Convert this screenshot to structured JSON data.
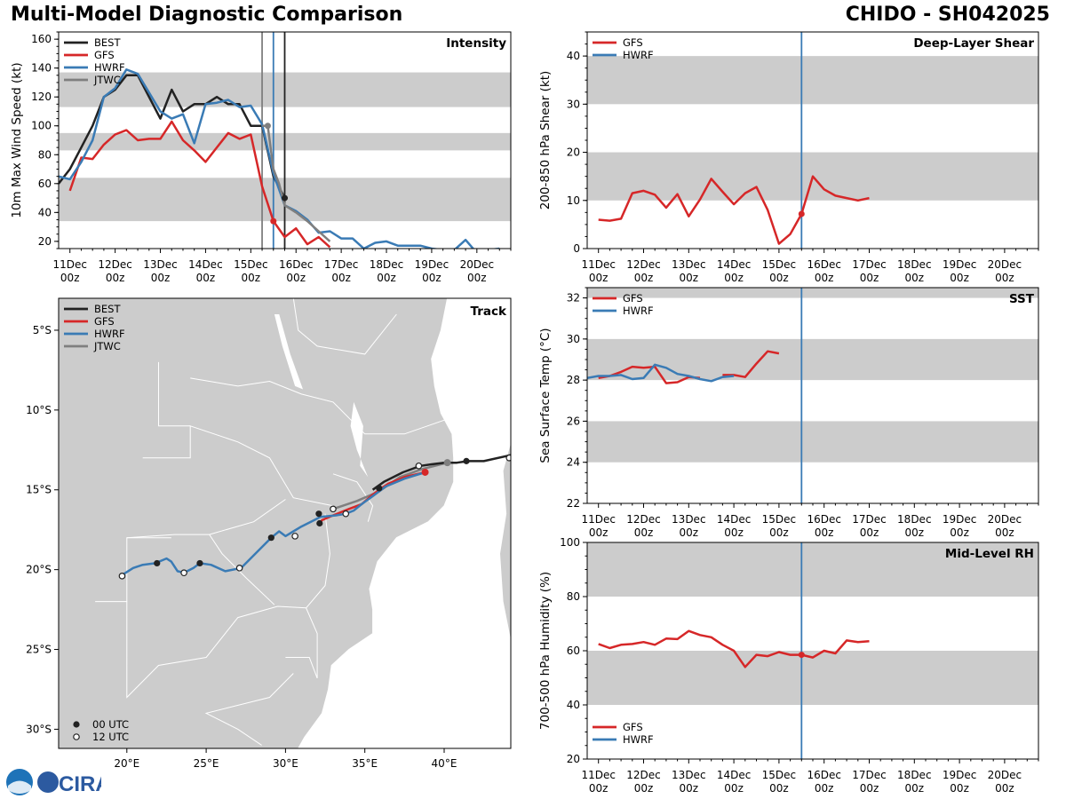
{
  "header": {
    "title": "Multi-Model Diagnostic Comparison",
    "storm": "CHIDO - SH042025"
  },
  "colors": {
    "BEST": "#222222",
    "GFS": "#d62728",
    "HWRF": "#3a7bb5",
    "JTWC": "#7f7f7f",
    "band": "#cccccc"
  },
  "logo": {
    "text": "CIRA"
  },
  "time_ticks": [
    "11Dec\n00z",
    "12Dec\n00z",
    "13Dec\n00z",
    "14Dec\n00z",
    "15Dec\n00z",
    "16Dec\n00z",
    "17Dec\n00z",
    "18Dec\n00z",
    "19Dec\n00z",
    "20Dec\n00z"
  ],
  "chart_data": [
    {
      "id": "intensity",
      "type": "line",
      "title": "Intensity",
      "ylabel": "10m Max Wind Speed (kt)",
      "xlim": [
        -0.25,
        9.75
      ],
      "ylim": [
        15,
        165
      ],
      "yticks": [
        20,
        40,
        60,
        80,
        100,
        120,
        140,
        160
      ],
      "bands": [
        [
          34,
          64
        ],
        [
          83,
          95
        ],
        [
          113,
          137
        ]
      ],
      "vlines": [
        {
          "x": 4.25,
          "color": "#7f7f7f"
        },
        {
          "x": 4.5,
          "color": "#3a7bb5"
        },
        {
          "x": 4.75,
          "color": "#222222"
        }
      ],
      "legend": [
        "BEST",
        "GFS",
        "HWRF",
        "JTWC"
      ],
      "legend_position": "top-left",
      "series": [
        {
          "name": "BEST",
          "x": [
            -0.25,
            0,
            0.25,
            0.5,
            0.75,
            1,
            1.25,
            1.5,
            1.75,
            2,
            2.25,
            2.5,
            2.75,
            3,
            3.25,
            3.5,
            3.75,
            4,
            4.25,
            4.5,
            4.75
          ],
          "y": [
            60,
            70,
            85,
            100,
            120,
            125,
            135,
            135,
            120,
            105,
            125,
            110,
            115,
            115,
            120,
            115,
            115,
            100,
            100,
            65,
            50
          ]
        },
        {
          "name": "GFS",
          "x": [
            0,
            0.25,
            0.5,
            0.75,
            1,
            1.25,
            1.5,
            1.75,
            2,
            2.25,
            2.5,
            2.75,
            3,
            3.25,
            3.5,
            3.75,
            4,
            4.25,
            4.5,
            4.75,
            5,
            5.25,
            5.5,
            5.75
          ],
          "y": [
            55,
            78,
            77,
            87,
            94,
            97,
            90,
            91,
            91,
            103,
            90,
            83,
            75,
            85,
            95,
            91,
            94,
            58,
            34,
            23,
            29,
            18,
            23,
            16
          ]
        },
        {
          "name": "HWRF",
          "x": [
            -0.25,
            0,
            0.25,
            0.5,
            0.75,
            1,
            1.25,
            1.5,
            1.75,
            2,
            2.25,
            2.5,
            2.75,
            3,
            3.25,
            3.5,
            3.75,
            4,
            4.25,
            4.5,
            4.75,
            5,
            5.25,
            5.5,
            5.75,
            6,
            6.25,
            6.5,
            6.75,
            7,
            7.25,
            7.5,
            7.75,
            8,
            8.25,
            8.5,
            8.75,
            9,
            9.25,
            9.5
          ],
          "y": [
            65,
            63,
            75,
            90,
            120,
            126,
            139,
            136,
            123,
            110,
            105,
            108,
            88,
            115,
            116,
            118,
            113,
            114,
            101,
            67,
            45,
            41,
            35,
            26,
            27,
            22,
            22,
            15,
            19,
            20,
            17,
            17,
            17,
            15,
            14,
            14,
            21,
            12,
            14,
            15
          ]
        },
        {
          "name": "JTWC",
          "x": [
            4.25,
            4.375,
            4.5,
            4.625,
            4.75,
            5,
            5.25,
            5.5,
            5.75
          ],
          "y": [
            100,
            100,
            70,
            60,
            45,
            40,
            34,
            27,
            20
          ]
        }
      ],
      "markers": [
        {
          "series": "GFS",
          "x": 4.5,
          "y": 34
        },
        {
          "series": "JTWC",
          "x": 4.375,
          "y": 100
        },
        {
          "series": "BEST",
          "x": 4.75,
          "y": 50
        }
      ]
    },
    {
      "id": "shear",
      "type": "line",
      "title": "Deep-Layer Shear",
      "ylabel": "200-850 hPa Shear (kt)",
      "xlim": [
        -0.25,
        9.75
      ],
      "ylim": [
        0,
        45
      ],
      "yticks": [
        0,
        10,
        20,
        30,
        40
      ],
      "bands": [
        [
          10,
          20
        ],
        [
          30,
          40
        ]
      ],
      "vlines": [
        {
          "x": 4.5,
          "color": "#3a7bb5"
        }
      ],
      "legend": [
        "GFS",
        "HWRF"
      ],
      "legend_position": "top-left",
      "series": [
        {
          "name": "GFS",
          "x": [
            0,
            0.25,
            0.5,
            0.75,
            1,
            1.25,
            1.5,
            1.75,
            2,
            2.25,
            2.5,
            2.75,
            3,
            3.25,
            3.5,
            3.75,
            4,
            4.25,
            4.5,
            4.75,
            5,
            5.25,
            5.5,
            5.75,
            6
          ],
          "y": [
            6,
            5.8,
            6.2,
            11.5,
            12,
            11.2,
            8.5,
            11.3,
            6.7,
            10.2,
            14.5,
            11.8,
            9.2,
            11.5,
            12.8,
            8,
            1,
            3,
            7.2,
            15,
            12.3,
            11,
            10.5,
            10,
            10.5
          ]
        }
      ],
      "markers": [
        {
          "series": "GFS",
          "x": 4.5,
          "y": 7.2
        }
      ]
    },
    {
      "id": "sst",
      "type": "line",
      "title": "SST",
      "ylabel": "Sea Surface Temp (°C)",
      "xlim": [
        -0.25,
        9.75
      ],
      "ylim": [
        22,
        32.5
      ],
      "yticks": [
        22,
        24,
        26,
        28,
        30,
        32
      ],
      "bands": [
        [
          24,
          26
        ],
        [
          28,
          30
        ],
        [
          32,
          33
        ]
      ],
      "vlines": [
        {
          "x": 4.5,
          "color": "#3a7bb5"
        }
      ],
      "legend": [
        "GFS",
        "HWRF"
      ],
      "legend_position": "top-left",
      "series": [
        {
          "name": "GFS",
          "x": [
            0,
            0.25,
            0.5,
            0.75,
            1,
            1.25,
            1.5,
            1.75,
            2,
            2.25,
            2.5,
            2.75,
            3,
            3.25,
            3.5,
            3.75,
            4
          ],
          "y": [
            28.1,
            28.2,
            28.4,
            28.65,
            28.6,
            28.65,
            27.85,
            27.9,
            28.15,
            28.1,
            null,
            28.25,
            28.25,
            28.15,
            28.8,
            29.4,
            29.3
          ]
        },
        {
          "name": "HWRF",
          "x": [
            -0.25,
            0,
            0.25,
            0.5,
            0.75,
            1,
            1.25,
            1.5,
            1.75,
            2,
            2.25,
            2.5,
            2.75,
            3
          ],
          "y": [
            28.1,
            28.2,
            28.2,
            28.25,
            28.05,
            28.1,
            28.75,
            28.6,
            28.3,
            28.2,
            28.05,
            27.95,
            28.15,
            28.2
          ]
        }
      ]
    },
    {
      "id": "rh",
      "type": "line",
      "title": "Mid-Level RH",
      "ylabel": "700-500 hPa Humidity (%)",
      "xlim": [
        -0.25,
        9.75
      ],
      "ylim": [
        20,
        100
      ],
      "yticks": [
        20,
        40,
        60,
        80,
        100
      ],
      "bands": [
        [
          40,
          60
        ],
        [
          80,
          100
        ]
      ],
      "vlines": [
        {
          "x": 4.5,
          "color": "#3a7bb5"
        }
      ],
      "legend": [
        "GFS",
        "HWRF"
      ],
      "legend_position": "bottom-left",
      "series": [
        {
          "name": "GFS",
          "x": [
            0,
            0.25,
            0.5,
            0.75,
            1,
            1.25,
            1.5,
            1.75,
            2,
            2.25,
            2.5,
            2.75,
            3,
            3.25,
            3.5,
            3.75,
            4,
            4.25,
            4.5,
            4.75,
            5,
            5.25,
            5.5,
            5.75,
            6
          ],
          "y": [
            62.5,
            61,
            62.2,
            62.5,
            63.2,
            62.2,
            64.5,
            64.3,
            67.3,
            65.8,
            65,
            62.2,
            60,
            54,
            58.5,
            58,
            59.5,
            58.5,
            58.5,
            57.5,
            60,
            59,
            63.8,
            63.2,
            63.5
          ]
        }
      ],
      "markers": [
        {
          "series": "GFS",
          "x": 4.5,
          "y": 58.5
        }
      ]
    },
    {
      "id": "track",
      "type": "map",
      "title": "Track",
      "xlim": [
        15.7,
        44.2
      ],
      "ylim": [
        -31.2,
        -3
      ],
      "xticks": [
        20,
        25,
        30,
        35,
        40
      ],
      "xtick_labels": [
        "20°E",
        "25°E",
        "30°E",
        "35°E",
        "40°E"
      ],
      "yticks": [
        -5,
        -10,
        -15,
        -20,
        -25,
        -30
      ],
      "ytick_labels": [
        "5°S",
        "10°S",
        "15°S",
        "20°S",
        "25°S",
        "30°S"
      ],
      "legend": [
        "BEST",
        "GFS",
        "HWRF",
        "JTWC"
      ],
      "legend_position": "top-left",
      "marker_legend": [
        "00 UTC",
        "12 UTC"
      ],
      "series": [
        {
          "name": "BEST",
          "lon": [
            44.3,
            42.5,
            41.5,
            40.8,
            40,
            39.2,
            38.5,
            37.4,
            36.2,
            35.5
          ],
          "lat": [
            -12.8,
            -13.2,
            -13.2,
            -13.3,
            -13.3,
            -13.4,
            -13.5,
            -13.9,
            -14.5,
            -15
          ]
        },
        {
          "name": "GFS",
          "lon": [
            38.8,
            37.5,
            36.5,
            35.9,
            35.5,
            34.8,
            34,
            33,
            32.3,
            32.15
          ],
          "lat": [
            -13.9,
            -14.2,
            -14.6,
            -15,
            -15.3,
            -15.9,
            -16.2,
            -16.6,
            -16.9,
            -17.1
          ]
        },
        {
          "name": "JTWC",
          "lon": [
            40.2,
            38.6,
            37.2,
            35.9,
            34.5,
            33
          ],
          "lat": [
            -13.3,
            -13.7,
            -14.2,
            -15.1,
            -15.7,
            -16.2
          ]
        },
        {
          "name": "HWRF",
          "lon": [
            38.8,
            37.5,
            36.3,
            35.5,
            34.8,
            34.3,
            33.8,
            33.2,
            32.2,
            31.6,
            31,
            30.5,
            30.0,
            29.6,
            29.1,
            28.5,
            27.9,
            27.2,
            26.2,
            25.3,
            24.6,
            24.2,
            23.8,
            23.6,
            23.2,
            22.8,
            22.5,
            21.8,
            21,
            20.4,
            19.6
          ],
          "lat": [
            -13.9,
            -14.3,
            -14.8,
            -15.4,
            -15.9,
            -16.3,
            -16.5,
            -16.6,
            -16.7,
            -17.0,
            -17.3,
            -17.6,
            -17.9,
            -17.6,
            -18.0,
            -18.6,
            -19.2,
            -19.9,
            -20.1,
            -19.7,
            -19.6,
            -19.9,
            -20.1,
            -20.2,
            -20.1,
            -19.5,
            -19.3,
            -19.6,
            -19.7,
            -19.9,
            -20.4
          ]
        }
      ],
      "points_00": [
        {
          "lon": 41.4,
          "lat": -13.2
        },
        {
          "lon": 35.9,
          "lat": -14.9
        },
        {
          "lon": 32.1,
          "lat": -16.5
        },
        {
          "lon": 32.15,
          "lat": -17.1
        },
        {
          "lon": 29.1,
          "lat": -18.0
        },
        {
          "lon": 24.6,
          "lat": -19.6
        },
        {
          "lon": 21.9,
          "lat": -19.6
        }
      ],
      "points_12": [
        {
          "lon": 44.1,
          "lat": -13.0
        },
        {
          "lon": 38.4,
          "lat": -13.5
        },
        {
          "lon": 33.8,
          "lat": -16.5
        },
        {
          "lon": 33.0,
          "lat": -16.2
        },
        {
          "lon": 30.6,
          "lat": -17.9
        },
        {
          "lon": 27.1,
          "lat": -19.9
        },
        {
          "lon": 23.6,
          "lat": -20.2
        },
        {
          "lon": 19.7,
          "lat": -20.4
        }
      ],
      "end_markers": [
        {
          "series": "GFS",
          "lon": 38.8,
          "lat": -13.9
        },
        {
          "series": "JTWC",
          "lon": 40.2,
          "lat": -13.3
        }
      ]
    }
  ]
}
